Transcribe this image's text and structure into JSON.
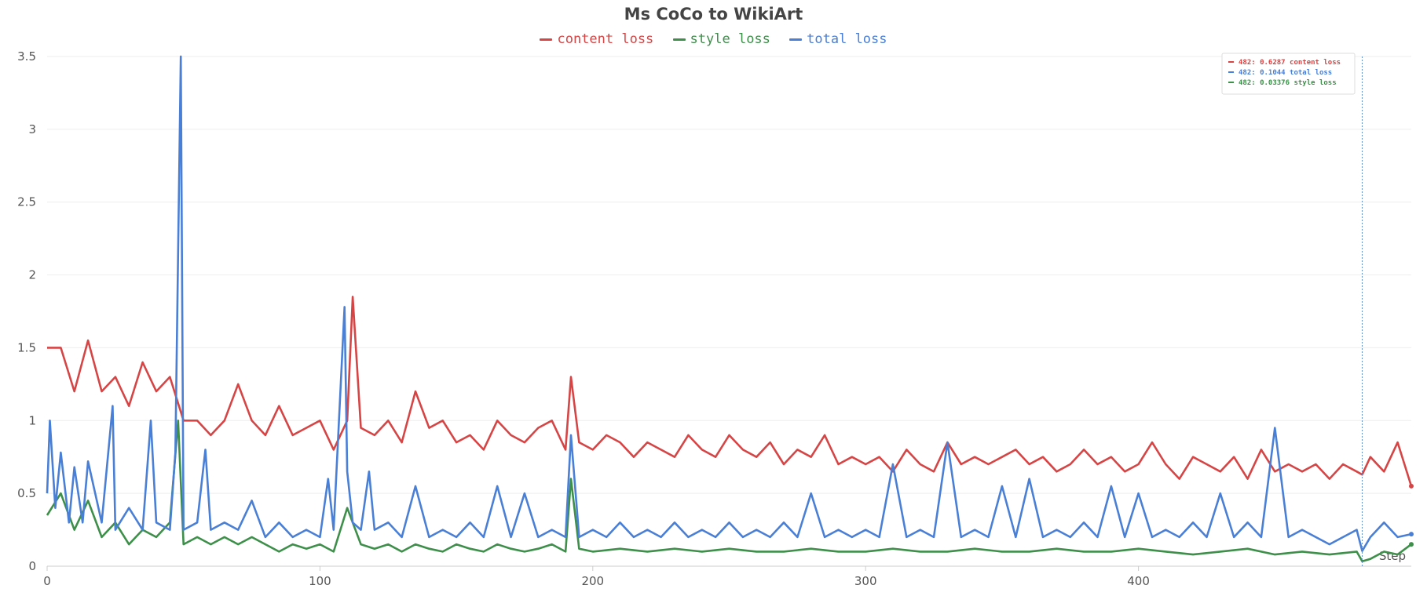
{
  "chart_data": {
    "type": "line",
    "title": "Ms CoCo to WikiArt",
    "xlabel": "Step",
    "ylabel": "",
    "xlim": [
      0,
      500
    ],
    "ylim": [
      0,
      3.5
    ],
    "x_ticks": [
      0,
      100,
      200,
      300,
      400
    ],
    "y_ticks": [
      0,
      0.5,
      1,
      1.5,
      2,
      2.5,
      3,
      3.5
    ],
    "y_tick_labels": [
      "0",
      "0.5",
      "1",
      "1.5",
      "2",
      "2.5",
      "3",
      "3.5"
    ],
    "grid": true,
    "legend_position": "top-center",
    "series": [
      {
        "name": "content loss",
        "color": "#d64545",
        "x": [
          0,
          5,
          10,
          15,
          20,
          25,
          30,
          35,
          40,
          45,
          50,
          55,
          60,
          65,
          70,
          75,
          80,
          85,
          90,
          95,
          100,
          105,
          110,
          112,
          115,
          120,
          125,
          130,
          135,
          140,
          145,
          150,
          155,
          160,
          165,
          170,
          175,
          180,
          185,
          190,
          192,
          195,
          200,
          205,
          210,
          215,
          220,
          225,
          230,
          235,
          240,
          245,
          250,
          255,
          260,
          265,
          270,
          275,
          280,
          285,
          290,
          295,
          300,
          305,
          310,
          315,
          320,
          325,
          330,
          335,
          340,
          345,
          350,
          355,
          360,
          365,
          370,
          375,
          380,
          385,
          390,
          395,
          400,
          405,
          410,
          415,
          420,
          425,
          430,
          435,
          440,
          445,
          450,
          455,
          460,
          465,
          470,
          475,
          480,
          482,
          485,
          490,
          495,
          500
        ],
        "values": [
          1.5,
          1.5,
          1.2,
          1.55,
          1.2,
          1.3,
          1.1,
          1.4,
          1.2,
          1.3,
          1.0,
          1.0,
          0.9,
          1.0,
          1.25,
          1.0,
          0.9,
          1.1,
          0.9,
          0.95,
          1.0,
          0.8,
          1.0,
          1.85,
          0.95,
          0.9,
          1.0,
          0.85,
          1.2,
          0.95,
          1.0,
          0.85,
          0.9,
          0.8,
          1.0,
          0.9,
          0.85,
          0.95,
          1.0,
          0.8,
          1.3,
          0.85,
          0.8,
          0.9,
          0.85,
          0.75,
          0.85,
          0.8,
          0.75,
          0.9,
          0.8,
          0.75,
          0.9,
          0.8,
          0.75,
          0.85,
          0.7,
          0.8,
          0.75,
          0.9,
          0.7,
          0.75,
          0.7,
          0.75,
          0.65,
          0.8,
          0.7,
          0.65,
          0.85,
          0.7,
          0.75,
          0.7,
          0.75,
          0.8,
          0.7,
          0.75,
          0.65,
          0.7,
          0.8,
          0.7,
          0.75,
          0.65,
          0.7,
          0.85,
          0.7,
          0.6,
          0.75,
          0.7,
          0.65,
          0.75,
          0.6,
          0.8,
          0.65,
          0.7,
          0.65,
          0.7,
          0.6,
          0.7,
          0.65,
          0.6287,
          0.75,
          0.65,
          0.85,
          0.55
        ]
      },
      {
        "name": "style loss",
        "color": "#3d8f4a",
        "x": [
          0,
          5,
          10,
          15,
          20,
          25,
          30,
          35,
          40,
          45,
          48,
          50,
          55,
          60,
          65,
          70,
          75,
          80,
          85,
          90,
          95,
          100,
          105,
          110,
          115,
          120,
          125,
          130,
          135,
          140,
          145,
          150,
          155,
          160,
          165,
          170,
          175,
          180,
          185,
          190,
          192,
          195,
          200,
          210,
          220,
          230,
          240,
          250,
          260,
          270,
          280,
          290,
          300,
          310,
          320,
          330,
          340,
          350,
          360,
          370,
          380,
          390,
          400,
          410,
          420,
          430,
          440,
          450,
          460,
          470,
          480,
          482,
          485,
          490,
          495,
          500
        ],
        "values": [
          0.35,
          0.5,
          0.25,
          0.45,
          0.2,
          0.3,
          0.15,
          0.25,
          0.2,
          0.3,
          1.0,
          0.15,
          0.2,
          0.15,
          0.2,
          0.15,
          0.2,
          0.15,
          0.1,
          0.15,
          0.12,
          0.15,
          0.1,
          0.4,
          0.15,
          0.12,
          0.15,
          0.1,
          0.15,
          0.12,
          0.1,
          0.15,
          0.12,
          0.1,
          0.15,
          0.12,
          0.1,
          0.12,
          0.15,
          0.1,
          0.6,
          0.12,
          0.1,
          0.12,
          0.1,
          0.12,
          0.1,
          0.12,
          0.1,
          0.1,
          0.12,
          0.1,
          0.1,
          0.12,
          0.1,
          0.1,
          0.12,
          0.1,
          0.1,
          0.12,
          0.1,
          0.1,
          0.12,
          0.1,
          0.08,
          0.1,
          0.12,
          0.08,
          0.1,
          0.08,
          0.1,
          0.03376,
          0.05,
          0.1,
          0.08,
          0.15
        ]
      },
      {
        "name": "total loss",
        "color": "#4a7fd6",
        "x": [
          0,
          1,
          3,
          5,
          8,
          10,
          13,
          15,
          20,
          24,
          25,
          30,
          35,
          38,
          40,
          45,
          47,
          49,
          50,
          55,
          58,
          60,
          65,
          70,
          75,
          80,
          85,
          90,
          95,
          100,
          103,
          105,
          109,
          110,
          112,
          115,
          118,
          120,
          125,
          130,
          135,
          140,
          145,
          150,
          155,
          160,
          165,
          170,
          175,
          180,
          185,
          190,
          192,
          195,
          200,
          205,
          210,
          215,
          220,
          225,
          230,
          235,
          240,
          245,
          250,
          255,
          260,
          265,
          270,
          275,
          280,
          285,
          290,
          295,
          300,
          305,
          310,
          315,
          320,
          325,
          330,
          335,
          340,
          345,
          350,
          355,
          360,
          365,
          370,
          375,
          380,
          385,
          390,
          395,
          400,
          405,
          410,
          415,
          420,
          425,
          430,
          435,
          440,
          445,
          450,
          455,
          460,
          465,
          470,
          475,
          480,
          482,
          485,
          490,
          495,
          500
        ],
        "values": [
          0.5,
          1.0,
          0.4,
          0.78,
          0.3,
          0.68,
          0.3,
          0.72,
          0.3,
          1.1,
          0.25,
          0.4,
          0.25,
          1.0,
          0.3,
          0.25,
          0.78,
          3.5,
          0.25,
          0.3,
          0.8,
          0.25,
          0.3,
          0.25,
          0.45,
          0.2,
          0.3,
          0.2,
          0.25,
          0.2,
          0.6,
          0.25,
          1.78,
          0.65,
          0.3,
          0.25,
          0.65,
          0.25,
          0.3,
          0.2,
          0.55,
          0.2,
          0.25,
          0.2,
          0.3,
          0.2,
          0.55,
          0.2,
          0.5,
          0.2,
          0.25,
          0.2,
          0.9,
          0.2,
          0.25,
          0.2,
          0.3,
          0.2,
          0.25,
          0.2,
          0.3,
          0.2,
          0.25,
          0.2,
          0.3,
          0.2,
          0.25,
          0.2,
          0.3,
          0.2,
          0.5,
          0.2,
          0.25,
          0.2,
          0.25,
          0.2,
          0.7,
          0.2,
          0.25,
          0.2,
          0.85,
          0.2,
          0.25,
          0.2,
          0.55,
          0.2,
          0.6,
          0.2,
          0.25,
          0.2,
          0.3,
          0.2,
          0.55,
          0.2,
          0.5,
          0.2,
          0.25,
          0.2,
          0.3,
          0.2,
          0.5,
          0.2,
          0.3,
          0.2,
          0.95,
          0.2,
          0.25,
          0.2,
          0.15,
          0.2,
          0.25,
          0.1044,
          0.2,
          0.3,
          0.2,
          0.22
        ]
      }
    ],
    "tooltip": {
      "entries": [
        {
          "text": "482: 0.6287 content loss",
          "color": "#d64545"
        },
        {
          "text": "482: 0.1044 total loss",
          "color": "#4a7fd6"
        },
        {
          "text": "482: 0.03376 style loss",
          "color": "#3d8f4a"
        }
      ],
      "hover_x": 482
    }
  }
}
